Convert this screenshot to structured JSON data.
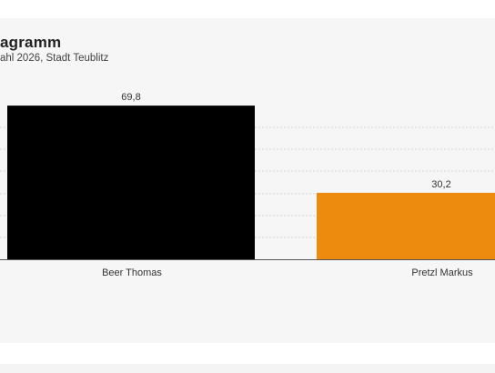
{
  "header": {
    "title": "agramm",
    "subtitle": "ahl 2026, Stadt Teublitz"
  },
  "chart_data": {
    "type": "bar",
    "categories": [
      "Beer Thomas",
      "Pretzl Markus"
    ],
    "values": [
      69.8,
      30.2
    ],
    "value_labels": [
      "69,8",
      "30,2"
    ],
    "colors": [
      "#000000",
      "#ec8b0e"
    ],
    "ylim": [
      0,
      80
    ],
    "grid": true,
    "legend": "none"
  }
}
